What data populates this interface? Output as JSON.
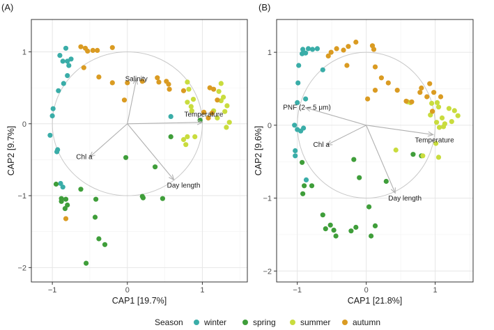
{
  "chart_data": [
    {
      "type": "scatter",
      "panel_label": "(A)",
      "xlabel": "CAP1  [19.7%]",
      "ylabel": "CAP2  [9.7%]",
      "xlim": [
        -1.28,
        1.6
      ],
      "ylim": [
        -2.2,
        1.45
      ],
      "x_ticks": [
        -1,
        0,
        1
      ],
      "y_ticks": [
        -2,
        -1,
        0,
        1
      ],
      "tick_labels_x": [
        "−1",
        "0",
        "1"
      ],
      "tick_labels_y": [
        "−2",
        "−1",
        "0",
        "1"
      ],
      "circle_radius": 1,
      "vectors": [
        {
          "label": "Salinity",
          "x": 0.12,
          "y": 0.62
        },
        {
          "label": "Temperature",
          "x": 1.0,
          "y": 0.02
        },
        {
          "label": "Chl a",
          "x": -0.5,
          "y": -0.46
        },
        {
          "label": "Day length",
          "x": 0.62,
          "y": -0.78
        }
      ],
      "series": [
        {
          "name": "winter",
          "points": [
            [
              -0.82,
              1.05
            ],
            [
              -0.9,
              0.95
            ],
            [
              -0.86,
              0.87
            ],
            [
              -0.8,
              0.87
            ],
            [
              -0.75,
              0.9
            ],
            [
              -0.78,
              0.81
            ],
            [
              -0.8,
              0.67
            ],
            [
              -0.85,
              0.56
            ],
            [
              -0.92,
              0.46
            ],
            [
              -0.99,
              0.21
            ],
            [
              -1.0,
              0.11
            ],
            [
              -1.03,
              -0.16
            ],
            [
              -0.93,
              -0.36
            ],
            [
              -0.94,
              -0.39
            ],
            [
              -0.89,
              -0.83
            ],
            [
              -0.86,
              -0.88
            ],
            [
              0.58,
              0.1
            ]
          ]
        },
        {
          "name": "spring",
          "points": [
            [
              -0.95,
              -0.84
            ],
            [
              -0.88,
              -1.04
            ],
            [
              -0.88,
              -1.08
            ],
            [
              -0.82,
              -1.05
            ],
            [
              -0.83,
              -1.18
            ],
            [
              -0.8,
              -1.13
            ],
            [
              -0.62,
              -0.91
            ],
            [
              -0.42,
              -1.05
            ],
            [
              -0.43,
              -1.3
            ],
            [
              -0.38,
              -1.6
            ],
            [
              -0.3,
              -1.68
            ],
            [
              -0.55,
              -1.94
            ],
            [
              -0.02,
              -0.47
            ],
            [
              0.37,
              -0.6
            ],
            [
              0.2,
              -1.01
            ],
            [
              0.21,
              -1.03
            ],
            [
              0.47,
              -1.04
            ],
            [
              0.97,
              0.05
            ],
            [
              0.58,
              -0.18
            ]
          ]
        },
        {
          "name": "summer",
          "points": [
            [
              0.8,
              0.58
            ],
            [
              0.82,
              0.48
            ],
            [
              0.8,
              0.3
            ],
            [
              0.88,
              0.34
            ],
            [
              0.85,
              0.24
            ],
            [
              0.86,
              0.18
            ],
            [
              1.25,
              0.56
            ],
            [
              1.22,
              0.45
            ],
            [
              1.28,
              0.37
            ],
            [
              1.25,
              0.32
            ],
            [
              1.33,
              0.25
            ],
            [
              1.15,
              0.18
            ],
            [
              1.2,
              0.08
            ],
            [
              1.3,
              0.17
            ],
            [
              1.32,
              -0.05
            ],
            [
              1.36,
              0.02
            ],
            [
              0.9,
              -0.18
            ],
            [
              0.8,
              -0.18
            ],
            [
              0.75,
              -0.22
            ],
            [
              0.78,
              -0.29
            ]
          ]
        },
        {
          "name": "autumn",
          "points": [
            [
              -0.62,
              1.07
            ],
            [
              -0.56,
              1.05
            ],
            [
              -0.53,
              1.01
            ],
            [
              -0.46,
              1.02
            ],
            [
              -0.4,
              1.02
            ],
            [
              -0.2,
              1.06
            ],
            [
              -0.58,
              0.78
            ],
            [
              -0.38,
              0.65
            ],
            [
              -0.2,
              0.57
            ],
            [
              0.0,
              0.57
            ],
            [
              0.2,
              0.59
            ],
            [
              0.4,
              0.64
            ],
            [
              0.42,
              0.58
            ],
            [
              0.52,
              0.59
            ],
            [
              0.56,
              0.48
            ],
            [
              0.75,
              0.46
            ],
            [
              -0.04,
              0.33
            ],
            [
              0.55,
              0.55
            ],
            [
              1.1,
              0.5
            ],
            [
              1.15,
              0.48
            ],
            [
              1.2,
              0.33
            ],
            [
              1.02,
              0.16
            ],
            [
              1.08,
              0.08
            ],
            [
              1.13,
              0.15
            ],
            [
              -0.82,
              -1.32
            ]
          ]
        }
      ]
    },
    {
      "type": "scatter",
      "panel_label": "(B)",
      "xlabel": "CAP1  [21.8%]",
      "ylabel": "CAP2  [9.6%]",
      "xlim": [
        -1.3,
        1.55
      ],
      "ylim": [
        -2.15,
        1.45
      ],
      "x_ticks": [
        -1,
        0,
        1
      ],
      "y_ticks": [
        -2,
        -1,
        0,
        1
      ],
      "tick_labels_x": [
        "−1",
        "0",
        "1"
      ],
      "tick_labels_y": [
        "−2",
        "−1",
        "0",
        "1"
      ],
      "circle_radius": 1,
      "vectors": [
        {
          "label": "PNF (2 – 5 μm)",
          "x": -0.88,
          "y": 0.24
        },
        {
          "label": "Temperature",
          "x": 0.97,
          "y": -0.13
        },
        {
          "label": "Chl a",
          "x": -0.57,
          "y": -0.27
        },
        {
          "label": "Day length",
          "x": 0.42,
          "y": -0.93
        }
      ],
      "series": [
        {
          "name": "winter",
          "points": [
            [
              -0.92,
              1.04
            ],
            [
              -0.84,
              1.05
            ],
            [
              -0.78,
              1.04
            ],
            [
              -0.71,
              1.05
            ],
            [
              -0.88,
              0.99
            ],
            [
              -0.93,
              0.98
            ],
            [
              -0.98,
              0.82
            ],
            [
              -0.63,
              0.76
            ],
            [
              -0.99,
              0.58
            ],
            [
              -1.0,
              0.31
            ],
            [
              -0.88,
              0.36
            ],
            [
              -1.04,
              0.0
            ],
            [
              -1.0,
              -0.06
            ],
            [
              -0.95,
              -0.08
            ],
            [
              -0.91,
              -0.04
            ],
            [
              -1.03,
              -0.35
            ],
            [
              -1.03,
              -0.42
            ],
            [
              -0.87,
              -0.75
            ]
          ]
        },
        {
          "name": "spring",
          "points": [
            [
              -0.9,
              -0.83
            ],
            [
              -0.92,
              -0.94
            ],
            [
              -0.79,
              -0.83
            ],
            [
              -0.18,
              -0.47
            ],
            [
              -0.1,
              -0.72
            ],
            [
              0.29,
              -0.77
            ],
            [
              0.68,
              -0.4
            ],
            [
              0.8,
              -0.42
            ],
            [
              -0.63,
              -1.23
            ],
            [
              -0.59,
              -1.42
            ],
            [
              -0.52,
              -1.37
            ],
            [
              -0.47,
              -1.44
            ],
            [
              -0.44,
              -1.52
            ],
            [
              -0.22,
              -1.45
            ],
            [
              -0.15,
              -1.4
            ],
            [
              0.04,
              -1.12
            ],
            [
              0.13,
              -1.38
            ],
            [
              0.07,
              -1.52
            ],
            [
              -0.93,
              -0.51
            ]
          ]
        },
        {
          "name": "summer",
          "points": [
            [
              0.6,
              0.32
            ],
            [
              0.64,
              0.31
            ],
            [
              0.95,
              0.3
            ],
            [
              1.03,
              0.31
            ],
            [
              1.05,
              0.25
            ],
            [
              1.1,
              0.1
            ],
            [
              1.2,
              0.23
            ],
            [
              1.28,
              0.2
            ],
            [
              1.33,
              0.13
            ],
            [
              1.24,
              0.05
            ],
            [
              1.14,
              0.02
            ],
            [
              1.02,
              0.04
            ],
            [
              1.06,
              -0.03
            ],
            [
              0.96,
              0.19
            ],
            [
              1.01,
              -0.25
            ],
            [
              1.05,
              -0.44
            ],
            [
              0.43,
              -0.34
            ],
            [
              0.82,
              -0.42
            ],
            [
              0.93,
              0.14
            ],
            [
              1.12,
              -0.02
            ]
          ]
        },
        {
          "name": "autumn",
          "points": [
            [
              -0.55,
              0.95
            ],
            [
              -0.51,
              1.0
            ],
            [
              -0.43,
              1.05
            ],
            [
              -0.33,
              1.03
            ],
            [
              -0.26,
              1.08
            ],
            [
              -0.15,
              1.14
            ],
            [
              0.09,
              1.09
            ],
            [
              0.11,
              1.04
            ],
            [
              0.13,
              0.8
            ],
            [
              -0.28,
              0.82
            ],
            [
              0.22,
              0.65
            ],
            [
              0.32,
              0.58
            ],
            [
              0.92,
              0.57
            ],
            [
              0.98,
              0.45
            ],
            [
              0.8,
              0.51
            ],
            [
              0.78,
              0.45
            ],
            [
              0.66,
              0.32
            ],
            [
              0.58,
              0.33
            ],
            [
              1.08,
              0.39
            ],
            [
              0.45,
              0.48
            ],
            [
              0.13,
              0.48
            ],
            [
              0.02,
              0.36
            ],
            [
              0.88,
              0.39
            ],
            [
              0.96,
              0.19
            ]
          ]
        }
      ]
    }
  ],
  "legend": {
    "title": "Season",
    "items": [
      {
        "label": "winter",
        "color": "#3aada8"
      },
      {
        "label": "spring",
        "color": "#3f9e3a"
      },
      {
        "label": "summer",
        "color": "#c9dc3e"
      },
      {
        "label": "autumn",
        "color": "#da9b22"
      }
    ]
  },
  "colors": {
    "grid_major": "#e6e6e6",
    "grid_minor": "#f2f2f2",
    "frame": "#333333",
    "circle": "#c8c8c8",
    "arrow": "#b0b0b0"
  }
}
